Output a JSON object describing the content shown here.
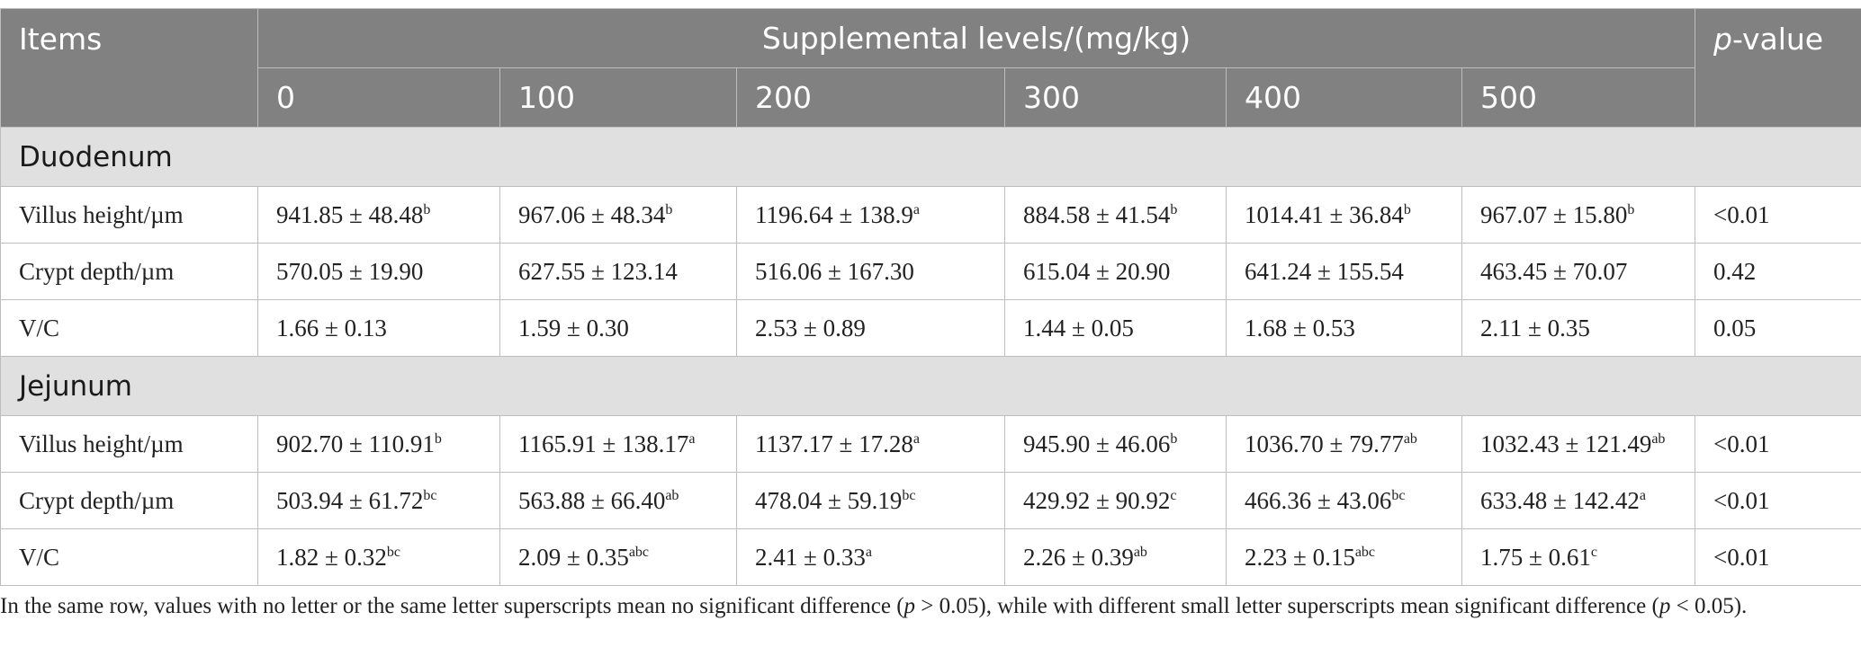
{
  "header": {
    "items": "Items",
    "supplemental": "Supplemental levels/(mg/kg)",
    "pvalue_p": "p",
    "pvalue_rest": "-value",
    "levels": [
      "0",
      "100",
      "200",
      "300",
      "400",
      "500"
    ]
  },
  "sections": [
    {
      "name": "Duodenum",
      "rows": [
        {
          "label": "Villus height/µm",
          "cells": [
            {
              "v": "941.85 ± 48.48",
              "s": "b"
            },
            {
              "v": "967.06 ± 48.34",
              "s": "b"
            },
            {
              "v": "1196.64 ± 138.9",
              "s": "a"
            },
            {
              "v": "884.58 ± 41.54",
              "s": "b"
            },
            {
              "v": "1014.41 ± 36.84",
              "s": "b"
            },
            {
              "v": "967.07 ± 15.80",
              "s": "b"
            }
          ],
          "p": "<0.01"
        },
        {
          "label": "Crypt depth/µm",
          "cells": [
            {
              "v": "570.05 ± 19.90",
              "s": ""
            },
            {
              "v": "627.55 ± 123.14",
              "s": ""
            },
            {
              "v": "516.06 ± 167.30",
              "s": ""
            },
            {
              "v": "615.04 ± 20.90",
              "s": ""
            },
            {
              "v": "641.24 ± 155.54",
              "s": ""
            },
            {
              "v": "463.45 ± 70.07",
              "s": ""
            }
          ],
          "p": "0.42"
        },
        {
          "label": "V/C",
          "cells": [
            {
              "v": "1.66 ± 0.13",
              "s": ""
            },
            {
              "v": "1.59 ± 0.30",
              "s": ""
            },
            {
              "v": "2.53 ± 0.89",
              "s": ""
            },
            {
              "v": "1.44 ± 0.05",
              "s": ""
            },
            {
              "v": "1.68 ± 0.53",
              "s": ""
            },
            {
              "v": "2.11 ± 0.35",
              "s": ""
            }
          ],
          "p": "0.05"
        }
      ]
    },
    {
      "name": "Jejunum",
      "rows": [
        {
          "label": "Villus height/µm",
          "cells": [
            {
              "v": "902.70 ± 110.91",
              "s": "b"
            },
            {
              "v": "1165.91 ± 138.17",
              "s": "a"
            },
            {
              "v": "1137.17 ± 17.28",
              "s": "a"
            },
            {
              "v": "945.90 ± 46.06",
              "s": "b"
            },
            {
              "v": "1036.70 ± 79.77",
              "s": "ab"
            },
            {
              "v": "1032.43 ± 121.49",
              "s": "ab"
            }
          ],
          "p": "<0.01"
        },
        {
          "label": "Crypt depth/µm",
          "cells": [
            {
              "v": "503.94 ± 61.72",
              "s": "bc"
            },
            {
              "v": "563.88 ± 66.40",
              "s": "ab"
            },
            {
              "v": "478.04 ± 59.19",
              "s": "bc"
            },
            {
              "v": "429.92 ± 90.92",
              "s": "c"
            },
            {
              "v": "466.36 ± 43.06",
              "s": "bc"
            },
            {
              "v": "633.48 ± 142.42",
              "s": "a"
            }
          ],
          "p": "<0.01"
        },
        {
          "label": "V/C",
          "cells": [
            {
              "v": "1.82 ± 0.32",
              "s": "bc"
            },
            {
              "v": "2.09 ± 0.35",
              "s": "abc"
            },
            {
              "v": "2.41 ± 0.33",
              "s": "a"
            },
            {
              "v": "2.26 ± 0.39",
              "s": "ab"
            },
            {
              "v": "2.23 ± 0.15",
              "s": "abc"
            },
            {
              "v": "1.75 ± 0.61",
              "s": "c"
            }
          ],
          "p": "<0.01"
        }
      ]
    }
  ],
  "footnote": {
    "part1": "In the same row, values with no letter or the same letter superscripts mean no significant difference (",
    "p1": "p",
    "part2": " > 0.05), while with different small letter superscripts mean significant difference (",
    "p2": "p",
    "part3": " < 0.05)."
  }
}
